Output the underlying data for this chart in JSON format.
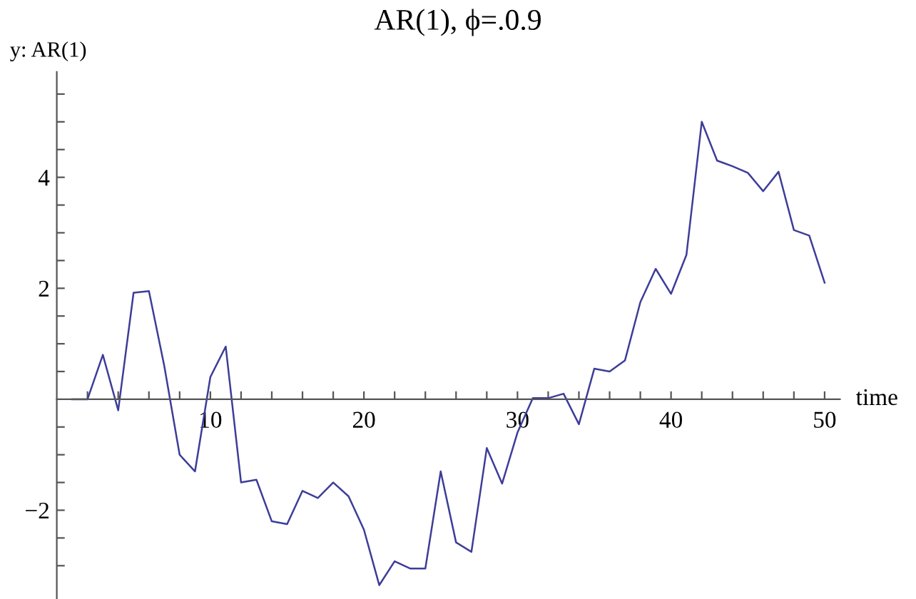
{
  "chart_data": {
    "type": "line",
    "title": "AR(1), ϕ=.0.9",
    "ylabel": "y: AR(1)",
    "xlabel": "time",
    "x": [
      1,
      2,
      3,
      4,
      5,
      6,
      7,
      8,
      9,
      10,
      11,
      12,
      13,
      14,
      15,
      16,
      17,
      18,
      19,
      20,
      21,
      22,
      23,
      24,
      25,
      26,
      27,
      28,
      29,
      30,
      31,
      32,
      33,
      34,
      35,
      36,
      37,
      38,
      39,
      40,
      41,
      42,
      43,
      44,
      45,
      46,
      47,
      48,
      49,
      50
    ],
    "series": [
      {
        "color": "#3d3d99",
        "values": [
          0,
          0,
          0.8,
          -0.2,
          1.92,
          1.95,
          0.6,
          -1.0,
          -1.3,
          0.4,
          0.95,
          -1.5,
          -1.45,
          -2.2,
          -2.25,
          -1.65,
          -1.78,
          -1.5,
          -1.75,
          -2.35,
          -3.35,
          -2.92,
          -3.05,
          -3.05,
          -1.3,
          -2.58,
          -2.75,
          -0.88,
          -1.52,
          -0.6,
          0.02,
          0.02,
          0.1,
          -0.45,
          0.55,
          0.5,
          0.7,
          1.75,
          2.35,
          1.9,
          2.6,
          5.0,
          4.3,
          4.2,
          4.08,
          3.75,
          4.1,
          3.05,
          2.95,
          2.1
        ]
      }
    ],
    "xlim": [
      0,
      51
    ],
    "ylim": [
      -3.6,
      5.9
    ],
    "xticks": [
      {
        "value": 2,
        "label": null
      },
      {
        "value": 4,
        "label": null
      },
      {
        "value": 6,
        "label": null
      },
      {
        "value": 8,
        "label": null
      },
      10,
      {
        "value": 12,
        "label": null
      },
      {
        "value": 14,
        "label": null
      },
      {
        "value": 16,
        "label": null
      },
      {
        "value": 18,
        "label": null
      },
      20,
      {
        "value": 22,
        "label": null
      },
      {
        "value": 24,
        "label": null
      },
      {
        "value": 26,
        "label": null
      },
      {
        "value": 28,
        "label": null
      },
      30,
      {
        "value": 32,
        "label": null
      },
      {
        "value": 34,
        "label": null
      },
      {
        "value": 36,
        "label": null
      },
      {
        "value": 38,
        "label": null
      },
      40,
      {
        "value": 42,
        "label": null
      },
      {
        "value": 44,
        "label": null
      },
      {
        "value": 46,
        "label": null
      },
      {
        "value": 48,
        "label": null
      },
      50
    ],
    "yticks": [
      {
        "value": -3,
        "label": null
      },
      {
        "value": -2.5,
        "label": null
      },
      {
        "value": -2,
        "label": "−2"
      },
      {
        "value": -1.5,
        "label": null
      },
      {
        "value": -1,
        "label": null
      },
      {
        "value": -0.5,
        "label": null
      },
      {
        "value": 0.5,
        "label": null
      },
      {
        "value": 1,
        "label": null
      },
      {
        "value": 1.5,
        "label": null
      },
      2,
      {
        "value": 2.5,
        "label": null
      },
      {
        "value": 3,
        "label": null
      },
      {
        "value": 3.5,
        "label": null
      },
      4,
      {
        "value": 4.5,
        "label": null
      },
      {
        "value": 5,
        "label": null
      },
      {
        "value": 5.5,
        "label": null
      }
    ],
    "grid": false,
    "legend": false
  }
}
